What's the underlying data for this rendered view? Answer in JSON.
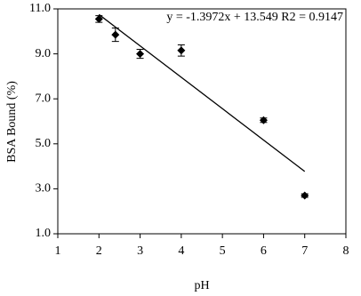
{
  "chart_data": {
    "type": "scatter",
    "x_label": "pH",
    "y_label": "BSA Bound (%)",
    "annotation": "y = -1.3972x + 13.549 R2 = 0.9147",
    "series": [
      {
        "color": "#000000",
        "x": [
          2,
          2.4,
          3,
          4,
          6,
          7
        ],
        "values": [
          10.55,
          9.85,
          9.0,
          9.15,
          6.05,
          2.7
        ],
        "errors": [
          0.15,
          0.3,
          0.2,
          0.25,
          0.1,
          0.08
        ]
      }
    ],
    "trendline": {
      "x": [
        2,
        7
      ],
      "values": [
        10.75,
        3.77
      ]
    },
    "xlim": [
      1,
      8
    ],
    "xticks": [
      1,
      2,
      3,
      4,
      5,
      6,
      7,
      8
    ],
    "ylim": [
      1,
      11
    ],
    "yticks": [
      {
        "value": 1,
        "label": "1.0"
      },
      {
        "value": 3,
        "label": "3.0"
      },
      {
        "value": 5,
        "label": "5.0"
      },
      {
        "value": 7,
        "label": "7.0"
      },
      {
        "value": 9,
        "label": "9.0"
      },
      {
        "value": 11,
        "label": "11.0"
      }
    ]
  }
}
